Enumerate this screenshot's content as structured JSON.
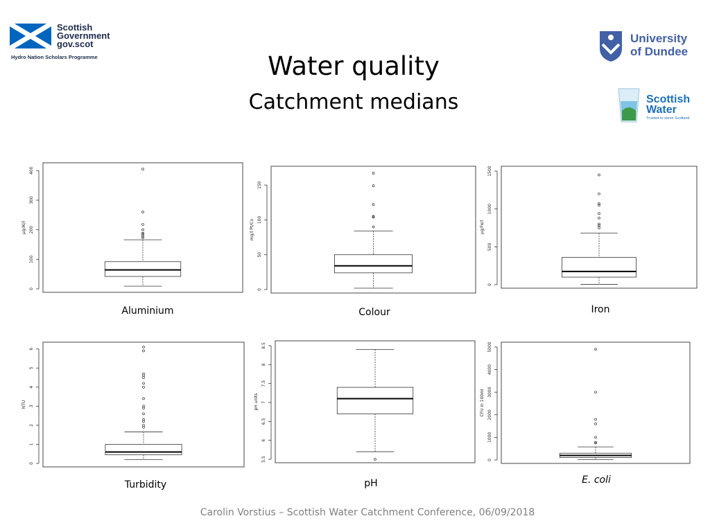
{
  "logos": {
    "scotgov_lines": [
      "Scottish",
      "Government",
      "gov.scot"
    ],
    "scotgov_sub": "Hydro Nation Scholars Programme",
    "dundee_lines": [
      "University",
      "of Dundee"
    ],
    "scottish_water_lines": [
      "Scottish",
      "Water"
    ],
    "scottish_water_tag": "Trusted to serve Scotland",
    "colors": {
      "gov_blue": "#0065bd",
      "dundee_blue": "#4160a5",
      "sw_blue": "#1a6fb7"
    }
  },
  "header": {
    "title": "Water quality",
    "subtitle": "Catchment medians"
  },
  "footer": "Carolin Vorstius – Scottish Water Catchment Conference, 06/09/2018",
  "chart_data": [
    {
      "type": "boxplot",
      "caption": "Aluminium",
      "italic": false,
      "ylabel": "µg/Al/l",
      "ylim": [
        0,
        410
      ],
      "yticks": [
        0,
        100,
        200,
        300,
        400
      ],
      "box": {
        "min": 9,
        "q1": 42,
        "median": 64,
        "q3": 92,
        "max": 166
      },
      "outliers": [
        173,
        178,
        185,
        188,
        200,
        218,
        260,
        405
      ]
    },
    {
      "type": "boxplot",
      "caption": "Colour",
      "italic": false,
      "ylabel": "mg/l Pt/Co",
      "ylim": [
        0,
        170
      ],
      "yticks": [
        0,
        50,
        100,
        150
      ],
      "box": {
        "min": 2,
        "q1": 24,
        "median": 34,
        "q3": 50,
        "max": 84
      },
      "outliers": [
        90,
        104,
        105,
        122,
        149,
        167
      ]
    },
    {
      "type": "boxplot",
      "caption": "Iron",
      "italic": false,
      "ylabel": "µg/Fe/l",
      "ylim": [
        0,
        1500
      ],
      "yticks": [
        0,
        500,
        1000,
        1500
      ],
      "box": {
        "min": 5,
        "q1": 100,
        "median": 175,
        "q3": 360,
        "max": 680
      },
      "outliers": [
        750,
        780,
        800,
        880,
        940,
        1050,
        1070,
        1200,
        1450
      ]
    },
    {
      "type": "boxplot",
      "caption": "Turbidity",
      "italic": false,
      "ylabel": "NTU",
      "ylim": [
        0,
        6.1
      ],
      "yticks": [
        0,
        1,
        2,
        3,
        4,
        5,
        6
      ],
      "box": {
        "min": 0.2,
        "q1": 0.45,
        "median": 0.6,
        "q3": 1.0,
        "max": 1.65
      },
      "outliers": [
        1.9,
        2.0,
        2.2,
        2.3,
        2.6,
        2.9,
        3.0,
        3.4,
        4.0,
        4.2,
        4.5,
        4.6,
        4.7,
        5.9,
        6.1
      ]
    },
    {
      "type": "boxplot",
      "caption": "pH",
      "italic": false,
      "ylabel": "pH units",
      "ylim": [
        5.5,
        8.5
      ],
      "yticks": [
        5.5,
        6.0,
        6.5,
        7.0,
        7.5,
        8.0,
        8.5
      ],
      "box": {
        "min": 5.7,
        "q1": 6.7,
        "median": 7.1,
        "q3": 7.4,
        "max": 8.4
      },
      "outliers": [
        5.5
      ]
    },
    {
      "type": "boxplot",
      "caption": "E. coli",
      "italic": true,
      "ylabel": "CFU in 100ml",
      "ylim": [
        0,
        5000
      ],
      "yticks": [
        0,
        1000,
        2000,
        3000,
        4000,
        5000
      ],
      "box": {
        "min": 20,
        "q1": 110,
        "median": 200,
        "q3": 300,
        "max": 580
      },
      "outliers": [
        750,
        780,
        1000,
        1600,
        1800,
        3000,
        4900
      ]
    }
  ]
}
